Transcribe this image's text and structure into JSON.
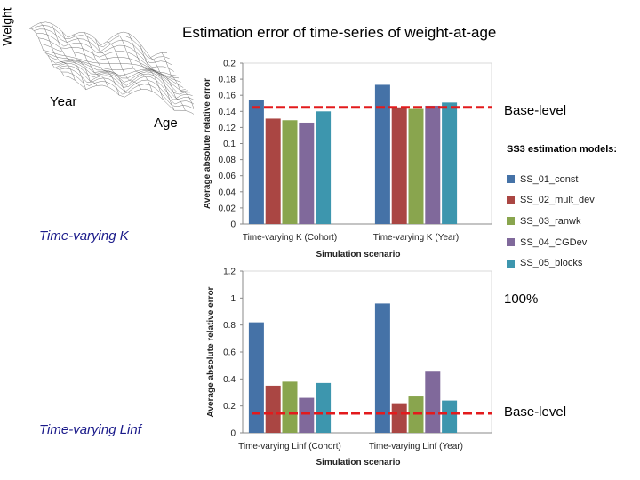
{
  "slide": {
    "title": "Estimation error of time-series of weight-at-age",
    "surface_labels": {
      "z": "Weight",
      "x": "Year",
      "y": "Age"
    },
    "panel_labels": {
      "top": "Time-varying K",
      "bottom": "Time-varying Linf"
    },
    "annotations": {
      "base_top": "Base-level",
      "base_bottom": "Base-level",
      "hundred": "100%"
    },
    "legend_title": "SS3 estimation models:"
  },
  "colors": {
    "series": [
      "#4572A7",
      "#AA4643",
      "#89A54E",
      "#80699B",
      "#3D96AE"
    ],
    "base_line": "#E31A1C"
  },
  "chart_data": [
    {
      "type": "bar",
      "categories": [
        "Time-varying K (Cohort)",
        "Time-varying K (Year)"
      ],
      "series": [
        {
          "name": "SS_01_const",
          "values": [
            0.154,
            0.173
          ]
        },
        {
          "name": "SS_02_mult_dev",
          "values": [
            0.131,
            0.145
          ]
        },
        {
          "name": "SS_03_ranwk",
          "values": [
            0.129,
            0.143
          ]
        },
        {
          "name": "SS_04_CGDev",
          "values": [
            0.126,
            0.147
          ]
        },
        {
          "name": "SS_05_blocks",
          "values": [
            0.14,
            0.151
          ]
        }
      ],
      "xlabel": "Simulation scenario",
      "ylabel": "Average absolute relative error",
      "ylim": [
        0,
        0.2
      ],
      "yticks": [
        "0",
        "0.02",
        "0.04",
        "0.06",
        "0.08",
        "0.1",
        "0.12",
        "0.14",
        "0.16",
        "0.18",
        "0.2"
      ],
      "base_level": 0.145
    },
    {
      "type": "bar",
      "categories": [
        "Time-varying Linf (Cohort)",
        "Time-varying Linf (Year)"
      ],
      "series": [
        {
          "name": "SS_01_const",
          "values": [
            0.82,
            0.96
          ]
        },
        {
          "name": "SS_02_mult_dev",
          "values": [
            0.35,
            0.22
          ]
        },
        {
          "name": "SS_03_ranwk",
          "values": [
            0.38,
            0.27
          ]
        },
        {
          "name": "SS_04_CGDev",
          "values": [
            0.26,
            0.46
          ]
        },
        {
          "name": "SS_05_blocks",
          "values": [
            0.37,
            0.24
          ]
        }
      ],
      "xlabel": "Simulation scenario",
      "ylabel": "Average absolute relative error",
      "ylim": [
        0,
        1.2
      ],
      "yticks": [
        "0",
        "0.2",
        "0.4",
        "0.6",
        "0.8",
        "1",
        "1.2"
      ],
      "base_level": 0.145,
      "hundred_level": 1.0
    }
  ]
}
